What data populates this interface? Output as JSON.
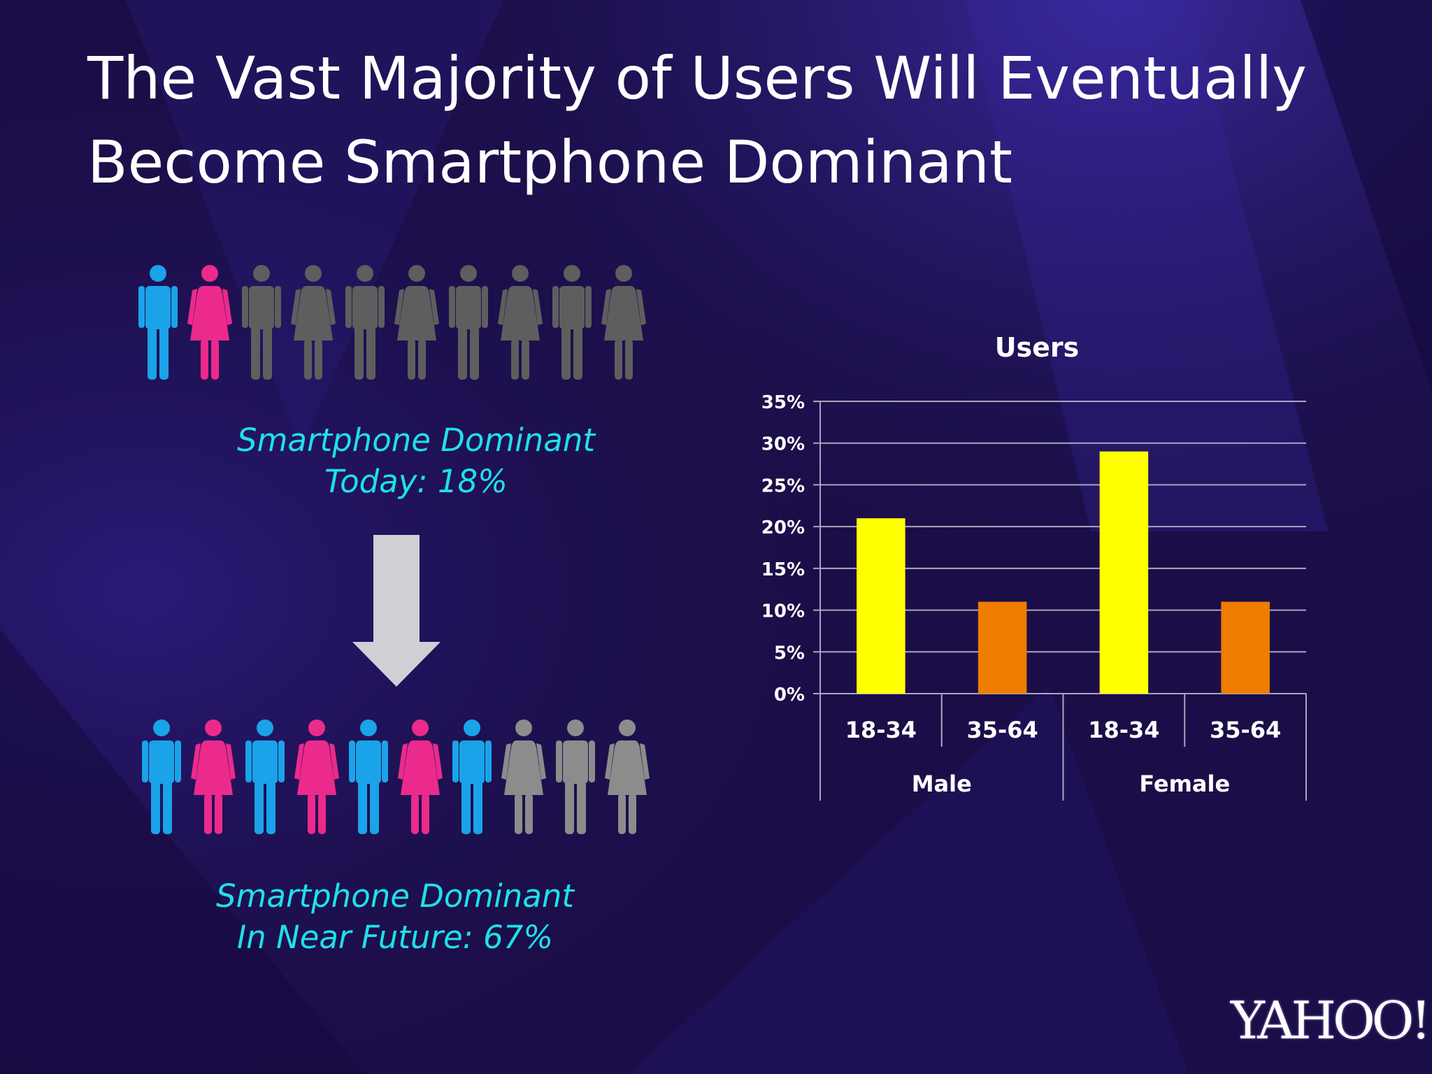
{
  "slide": {
    "title_line1": "The Vast Majority of Users Will Eventually",
    "title_line2": "Become Smartphone Dominant",
    "logo": "YAHOO!"
  },
  "today": {
    "caption_line1": "Smartphone Dominant",
    "caption_line2": "Today: 18%",
    "figures": [
      "male",
      "female",
      "male",
      "female",
      "male",
      "female",
      "male",
      "female",
      "male",
      "female"
    ],
    "highlighted_count": 2
  },
  "future": {
    "caption_line1": "Smartphone Dominant",
    "caption_line2": "In Near Future: 67%",
    "figures": [
      "male",
      "female",
      "male",
      "female",
      "male",
      "female",
      "male",
      "female",
      "male",
      "female"
    ],
    "highlighted_count": 7
  },
  "colors": {
    "male": "#1aa3e8",
    "female": "#ec2a8c",
    "inactive_today": "#5e5e5e",
    "inactive_future": "#8c8c8c",
    "caption": "#1fe0ea",
    "arrow": "#cfcfd6",
    "bar_18_34": "#ffff00",
    "bar_35_64": "#ee7d00"
  },
  "chart_data": {
    "type": "bar",
    "title": "Users",
    "xlabel": "",
    "ylabel": "",
    "groups": [
      "Male",
      "Female"
    ],
    "categories": [
      "18-34",
      "35-64",
      "18-34",
      "35-64"
    ],
    "values": [
      21,
      11,
      29,
      11
    ],
    "bar_colors": [
      "#ffff00",
      "#ee7d00",
      "#ffff00",
      "#ee7d00"
    ],
    "ylim": [
      0,
      35
    ],
    "yticks": [
      0,
      5,
      10,
      15,
      20,
      25,
      30,
      35
    ],
    "ytick_labels": [
      "0%",
      "5%",
      "10%",
      "15%",
      "20%",
      "25%",
      "30%",
      "35%"
    ],
    "grid": true,
    "legend": "none"
  }
}
